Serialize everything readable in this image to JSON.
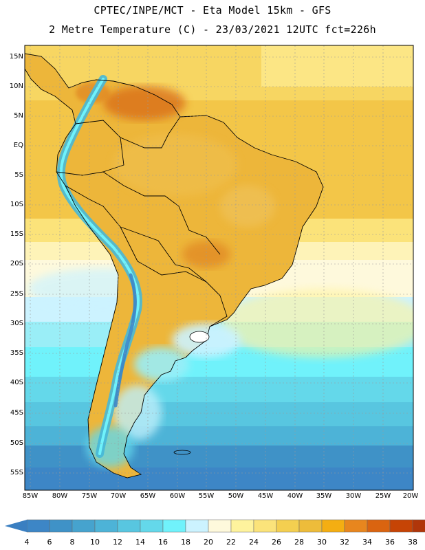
{
  "header": {
    "title_line1": "CPTEC/INPE/MCT -  Eta Model 15km - GFS",
    "title_line2": "2 Metre Temperature (C) - 23/03/2021 12UTC fct=226h"
  },
  "map": {
    "latitude_labels": [
      "15N",
      "10N",
      "5N",
      "EQ",
      "5S",
      "10S",
      "15S",
      "20S",
      "25S",
      "30S",
      "35S",
      "40S",
      "45S",
      "50S",
      "55S"
    ],
    "longitude_labels": [
      "85W",
      "80W",
      "75W",
      "70W",
      "65W",
      "60W",
      "55W",
      "50W",
      "45W",
      "40W",
      "35W",
      "30W",
      "25W",
      "20W"
    ],
    "background_color": "#F3C648"
  },
  "colorbar": {
    "labels": [
      "4",
      "6",
      "8",
      "10",
      "12",
      "14",
      "16",
      "18",
      "20",
      "22",
      "24",
      "26",
      "28",
      "30",
      "32",
      "34",
      "36",
      "38"
    ],
    "colors": [
      "#3D86C6",
      "#3F92C7",
      "#46A3CE",
      "#4DB3D7",
      "#58C6E0",
      "#64D8EA",
      "#70F2FB",
      "#CCF3FF",
      "#FEF9DC",
      "#FEF39D",
      "#FBE37A",
      "#F4CF50",
      "#EDBC3A",
      "#F4AE12",
      "#E8861E",
      "#DA6410",
      "#C64405",
      "#B0360A"
    ],
    "low_end_color": "#3A7FC1",
    "high_end_color": "#B0360A"
  }
}
